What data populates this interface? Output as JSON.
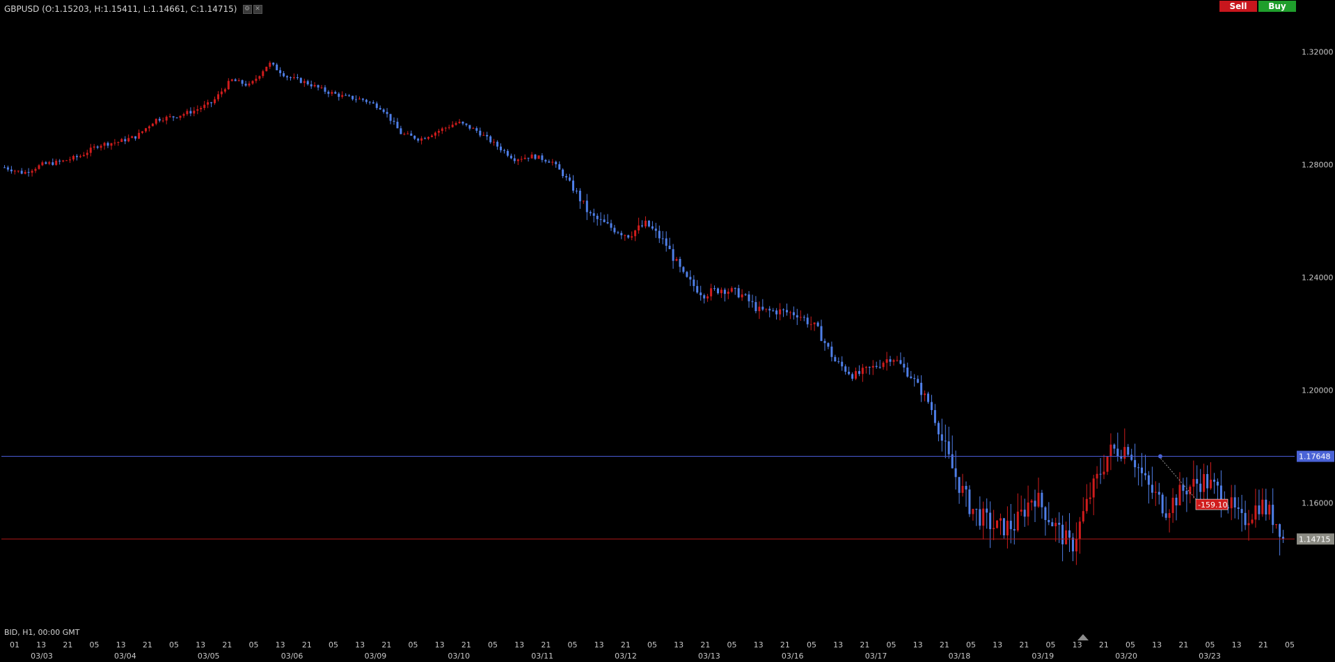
{
  "header": {
    "symbol": "GBPUSD",
    "ohlc_text": "(O:1.15203, H:1.15411, L:1.14661, C:1.14715)",
    "icons": [
      "settings-icon",
      "close-icon"
    ]
  },
  "buttons": {
    "sell_label": "Sell",
    "buy_label": "Buy"
  },
  "footer": {
    "info": "BID, H1, 00:00 GMT"
  },
  "colors": {
    "background": "#000000",
    "bull_candle": "#d01c1c",
    "bear_candle": "#4f7fe8",
    "order_line": "#4a5bd6",
    "bid_line": "#b01818",
    "order_badge": "#4a63d6",
    "bid_badge": "#8c8c84",
    "pnl_badge": "#d01c1c",
    "axis_text": "#c8c8c8"
  },
  "chart_data": {
    "type": "candlestick",
    "symbol": "GBPUSD",
    "timeframe": "H1",
    "ylim": [
      1.125,
      1.328
    ],
    "y_ticks": [
      "1.32000",
      "1.28000",
      "1.24000",
      "1.20000",
      "1.16000"
    ],
    "x_hour_labels": [
      "01",
      "13",
      "21",
      "05",
      "13",
      "21",
      "05",
      "13",
      "21",
      "05",
      "13",
      "21",
      "05",
      "13",
      "21",
      "05",
      "13",
      "21",
      "05",
      "13",
      "21",
      "05",
      "13",
      "21",
      "05",
      "13",
      "21",
      "05",
      "13",
      "21",
      "05",
      "13",
      "21",
      "05",
      "13",
      "21",
      "05",
      "13",
      "21",
      "05",
      "13",
      "21",
      "05",
      "13",
      "21",
      "05",
      "13",
      "21",
      "05"
    ],
    "x_date_labels": [
      "03/03",
      "03/04",
      "03/05",
      "03/06",
      "03/09",
      "03/10",
      "03/11",
      "03/12",
      "03/13",
      "03/16",
      "03/17",
      "03/18",
      "03/19",
      "03/20",
      "03/23"
    ],
    "price_path": [
      [
        0,
        1.279
      ],
      [
        24,
        1.277
      ],
      [
        48,
        1.28
      ],
      [
        72,
        1.281
      ],
      [
        96,
        1.283
      ],
      [
        120,
        1.287
      ],
      [
        144,
        1.288
      ],
      [
        168,
        1.29
      ],
      [
        192,
        1.296
      ],
      [
        216,
        1.297
      ],
      [
        240,
        1.299
      ],
      [
        264,
        1.302
      ],
      [
        288,
        1.31
      ],
      [
        312,
        1.308
      ],
      [
        336,
        1.316
      ],
      [
        360,
        1.311
      ],
      [
        384,
        1.309
      ],
      [
        408,
        1.306
      ],
      [
        432,
        1.304
      ],
      [
        456,
        1.303
      ],
      [
        480,
        1.3
      ],
      [
        504,
        1.291
      ],
      [
        528,
        1.289
      ],
      [
        552,
        1.292
      ],
      [
        576,
        1.295
      ],
      [
        600,
        1.292
      ],
      [
        624,
        1.287
      ],
      [
        648,
        1.282
      ],
      [
        672,
        1.283
      ],
      [
        696,
        1.281
      ],
      [
        720,
        1.273
      ],
      [
        744,
        1.262
      ],
      [
        768,
        1.258
      ],
      [
        792,
        1.255
      ],
      [
        816,
        1.259
      ],
      [
        840,
        1.252
      ],
      [
        864,
        1.24
      ],
      [
        888,
        1.234
      ],
      [
        912,
        1.236
      ],
      [
        936,
        1.234
      ],
      [
        960,
        1.228
      ],
      [
        984,
        1.228
      ],
      [
        1008,
        1.227
      ],
      [
        1032,
        1.222
      ],
      [
        1056,
        1.21
      ],
      [
        1080,
        1.205
      ],
      [
        1104,
        1.208
      ],
      [
        1128,
        1.212
      ],
      [
        1152,
        1.205
      ],
      [
        1176,
        1.195
      ],
      [
        1200,
        1.175
      ],
      [
        1224,
        1.16
      ],
      [
        1236,
        1.156
      ],
      [
        1260,
        1.151
      ],
      [
        1284,
        1.152
      ],
      [
        1308,
        1.163
      ],
      [
        1332,
        1.153
      ],
      [
        1356,
        1.144
      ],
      [
        1380,
        1.163
      ],
      [
        1404,
        1.178
      ],
      [
        1428,
        1.18
      ],
      [
        1452,
        1.166
      ],
      [
        1476,
        1.158
      ],
      [
        1500,
        1.165
      ],
      [
        1524,
        1.168
      ],
      [
        1548,
        1.163
      ],
      [
        1572,
        1.153
      ],
      [
        1596,
        1.16
      ],
      [
        1620,
        1.152
      ],
      [
        1625,
        1.14715
      ]
    ],
    "last_price": "1.14715",
    "order_line": {
      "price": 1.17648,
      "label": "1.17648"
    },
    "bid_line": {
      "price": 1.14715,
      "label": "1.14715"
    },
    "position_pnl": "-159.10"
  }
}
